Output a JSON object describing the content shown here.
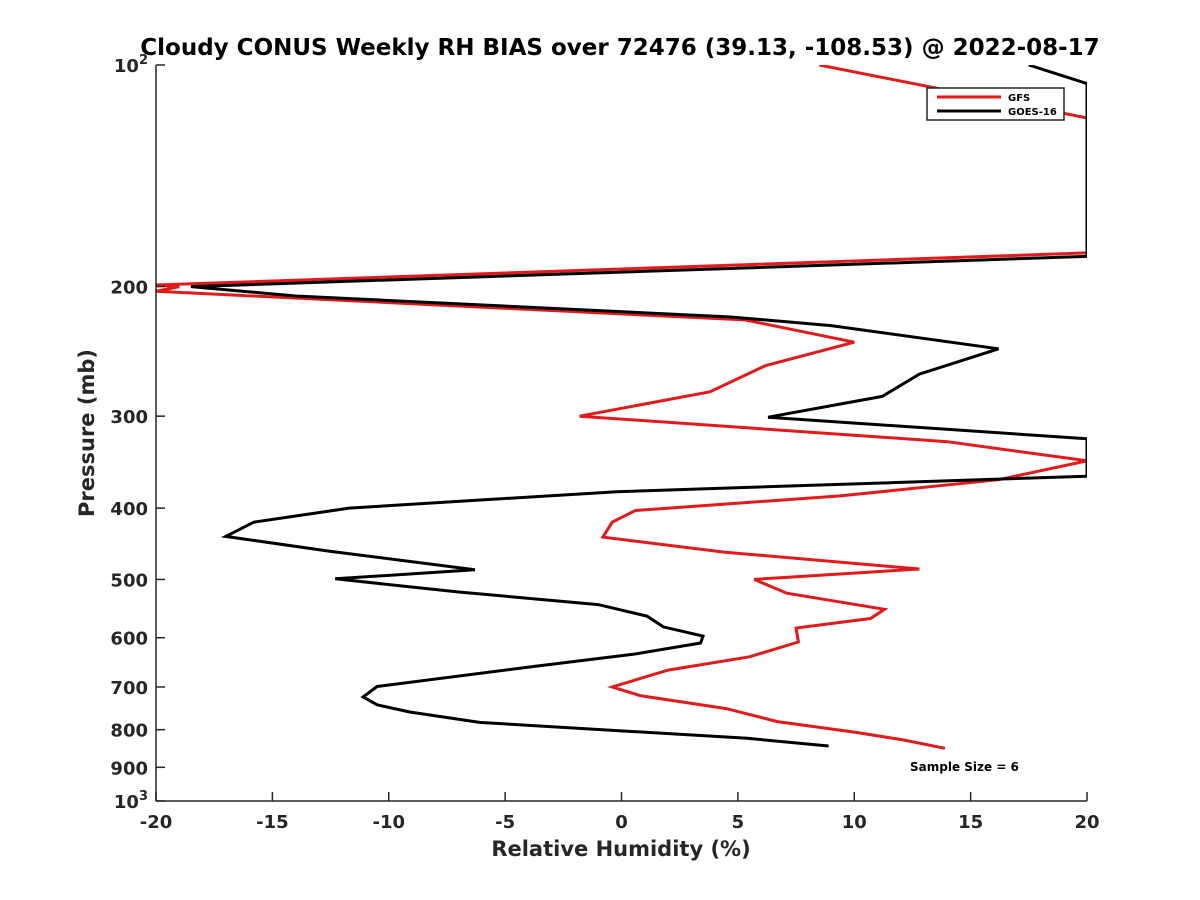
{
  "chart_data": {
    "type": "line",
    "title": "Cloudy CONUS Weekly RH BIAS over 72476 (39.13, -108.53) @ 2022-08-17",
    "xlabel": "Relative Humidity (%)",
    "ylabel": "Pressure (mb)",
    "xlim": [
      -20,
      20
    ],
    "ylim": [
      100,
      1000
    ],
    "y_scale": "log",
    "y_reversed": true,
    "x_ticks": [
      "-20",
      "-15",
      "-10",
      "-5",
      "0",
      "5",
      "10",
      "15",
      "20"
    ],
    "y_ticks": [
      {
        "value": 100,
        "base": "10",
        "exp": "2"
      },
      {
        "value": 200,
        "label": "200"
      },
      {
        "value": 300,
        "label": "300"
      },
      {
        "value": 400,
        "label": "400"
      },
      {
        "value": 500,
        "label": "500"
      },
      {
        "value": 600,
        "label": "600"
      },
      {
        "value": 700,
        "label": "700"
      },
      {
        "value": 800,
        "label": "800"
      },
      {
        "value": 900,
        "label": "900"
      },
      {
        "value": 1000,
        "base": "10",
        "exp": "3"
      }
    ],
    "grid": false,
    "legend_position": "top-right",
    "annotation": "Sample Size = 6",
    "series": [
      {
        "name": "GFS",
        "color": "#e31a1c",
        "points": [
          [
            8.5,
            100
          ],
          [
            20,
            118
          ],
          [
            20,
            180
          ],
          [
            -20,
            199
          ],
          [
            -19,
            200
          ],
          [
            -20,
            203
          ],
          [
            5.3,
            222
          ],
          [
            10,
            238
          ],
          [
            6.2,
            256
          ],
          [
            3.8,
            278
          ],
          [
            -1.8,
            300
          ],
          [
            14,
            325
          ],
          [
            20,
            345
          ],
          [
            16.2,
            366
          ],
          [
            9.4,
            385
          ],
          [
            0.6,
            403
          ],
          [
            -0.4,
            418
          ],
          [
            -0.8,
            438
          ],
          [
            4.4,
            459
          ],
          [
            12.8,
            484
          ],
          [
            5.7,
            500
          ],
          [
            7.1,
            522
          ],
          [
            11.3,
            549
          ],
          [
            10.7,
            565
          ],
          [
            7.5,
            582
          ],
          [
            7.6,
            608
          ],
          [
            5.5,
            637
          ],
          [
            2,
            664
          ],
          [
            -0.4,
            700
          ],
          [
            0.8,
            719
          ],
          [
            4.5,
            749
          ],
          [
            6.7,
            780
          ],
          [
            10,
            806
          ],
          [
            12.1,
            826
          ],
          [
            13.9,
            848
          ]
        ]
      },
      {
        "name": "GOES-16",
        "color": "#000000",
        "points": [
          [
            17.5,
            100
          ],
          [
            20,
            106
          ],
          [
            20,
            182
          ],
          [
            -18.5,
            200
          ],
          [
            -14,
            206
          ],
          [
            4.7,
            220
          ],
          [
            9,
            226
          ],
          [
            16.2,
            243
          ],
          [
            12.8,
            263
          ],
          [
            11.2,
            282
          ],
          [
            6.3,
            301
          ],
          [
            20,
            322
          ],
          [
            20,
            362
          ],
          [
            -0.2,
            380
          ],
          [
            -11.7,
            400
          ],
          [
            -15.8,
            418
          ],
          [
            -17,
            437
          ],
          [
            -12.5,
            458
          ],
          [
            -6.3,
            485
          ],
          [
            -12.3,
            499
          ],
          [
            -7,
            520
          ],
          [
            -1,
            541
          ],
          [
            1.1,
            561
          ],
          [
            1.8,
            580
          ],
          [
            3.5,
            597
          ],
          [
            3.4,
            610
          ],
          [
            0.5,
            632
          ],
          [
            -3.7,
            656
          ],
          [
            -10.5,
            699
          ],
          [
            -11.1,
            722
          ],
          [
            -10.5,
            740
          ],
          [
            -9.1,
            757
          ],
          [
            -6.1,
            782
          ],
          [
            5.4,
            822
          ],
          [
            8.9,
            842
          ]
        ]
      }
    ]
  }
}
